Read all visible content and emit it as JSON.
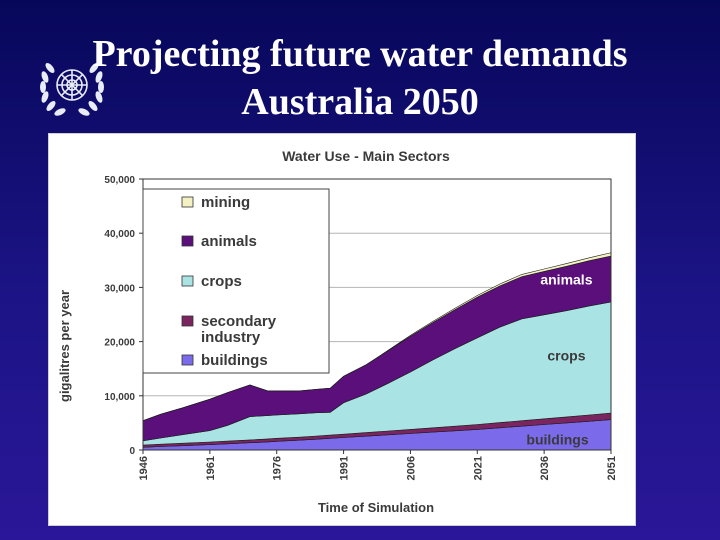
{
  "slide": {
    "title_line1": "Projecting future water demands",
    "title_line2": "Australia 2050",
    "logo_icon": "un-emblem-icon"
  },
  "colors": {
    "background_top": "#07075a",
    "background_bottom": "#2a1698",
    "buildings": "#7b6bea",
    "secondary_industry": "#7a2460",
    "crops": "#a9e3e3",
    "animals": "#5a0f7a",
    "mining": "#f4f1c2"
  },
  "chart_data": {
    "type": "area",
    "stacked": true,
    "title": "Water Use - Main Sectors",
    "xlabel": "Time of Simulation",
    "ylabel": "gigalitres per year",
    "xlim": [
      1946,
      2051
    ],
    "ylim": [
      0,
      50000
    ],
    "x_ticks": [
      1946,
      1961,
      1976,
      1991,
      2006,
      2021,
      2036,
      2051
    ],
    "y_ticks": [
      0,
      10000,
      20000,
      30000,
      40000,
      50000
    ],
    "y_tick_labels": [
      "0",
      "10,000",
      "20,000",
      "30,000",
      "40,000",
      "50,000"
    ],
    "grid": "horizontal",
    "legend_position": "top-left",
    "x": [
      1946,
      1950,
      1955,
      1961,
      1965,
      1970,
      1974,
      1976,
      1981,
      1985,
      1988,
      1991,
      1996,
      2001,
      2006,
      2011,
      2016,
      2021,
      2026,
      2031,
      2036,
      2041,
      2046,
      2051
    ],
    "series": [
      {
        "name": "buildings",
        "key": "buildings",
        "values": [
          500,
          650,
          800,
          1000,
          1150,
          1350,
          1500,
          1600,
          1800,
          2000,
          2150,
          2300,
          2550,
          2800,
          3050,
          3300,
          3550,
          3800,
          4100,
          4400,
          4700,
          5000,
          5300,
          5600
        ]
      },
      {
        "name": "secondary industry",
        "key": "secondary_industry",
        "values": [
          400,
          420,
          450,
          480,
          500,
          520,
          540,
          550,
          570,
          590,
          600,
          620,
          660,
          700,
          750,
          800,
          850,
          900,
          950,
          1000,
          1050,
          1100,
          1150,
          1200
        ]
      },
      {
        "name": "crops",
        "key": "crops",
        "values": [
          800,
          1150,
          1600,
          2100,
          2900,
          4300,
          4300,
          4300,
          4300,
          4300,
          4200,
          5800,
          7100,
          8800,
          10600,
          12500,
          14300,
          16000,
          17600,
          18800,
          19200,
          19600,
          20100,
          20500
        ]
      },
      {
        "name": "animals",
        "key": "animals",
        "values": [
          3700,
          4380,
          4950,
          5800,
          6050,
          5830,
          4560,
          4450,
          4230,
          4310,
          4450,
          4880,
          5390,
          6000,
          6600,
          6900,
          7200,
          7500,
          7600,
          7800,
          8000,
          8200,
          8350,
          8500
        ]
      },
      {
        "name": "mining",
        "key": "mining",
        "values": [
          0,
          0,
          0,
          0,
          0,
          0,
          0,
          0,
          0,
          0,
          0,
          0,
          0,
          100,
          150,
          200,
          250,
          300,
          350,
          400,
          450,
          500,
          550,
          600
        ]
      }
    ],
    "legend": [
      {
        "label": "mining",
        "key": "mining"
      },
      {
        "label": "animals",
        "key": "animals"
      },
      {
        "label": "crops",
        "key": "crops"
      },
      {
        "label": "secondary\nindustry",
        "key": "secondary_industry"
      },
      {
        "label": "buildings",
        "key": "buildings"
      }
    ],
    "annotations": [
      {
        "text": "animals",
        "x": 2041,
        "y": 30500
      },
      {
        "text": "crops",
        "x": 2041,
        "y": 16500
      },
      {
        "text": "buildings",
        "x": 2039,
        "y": 1000
      }
    ]
  }
}
